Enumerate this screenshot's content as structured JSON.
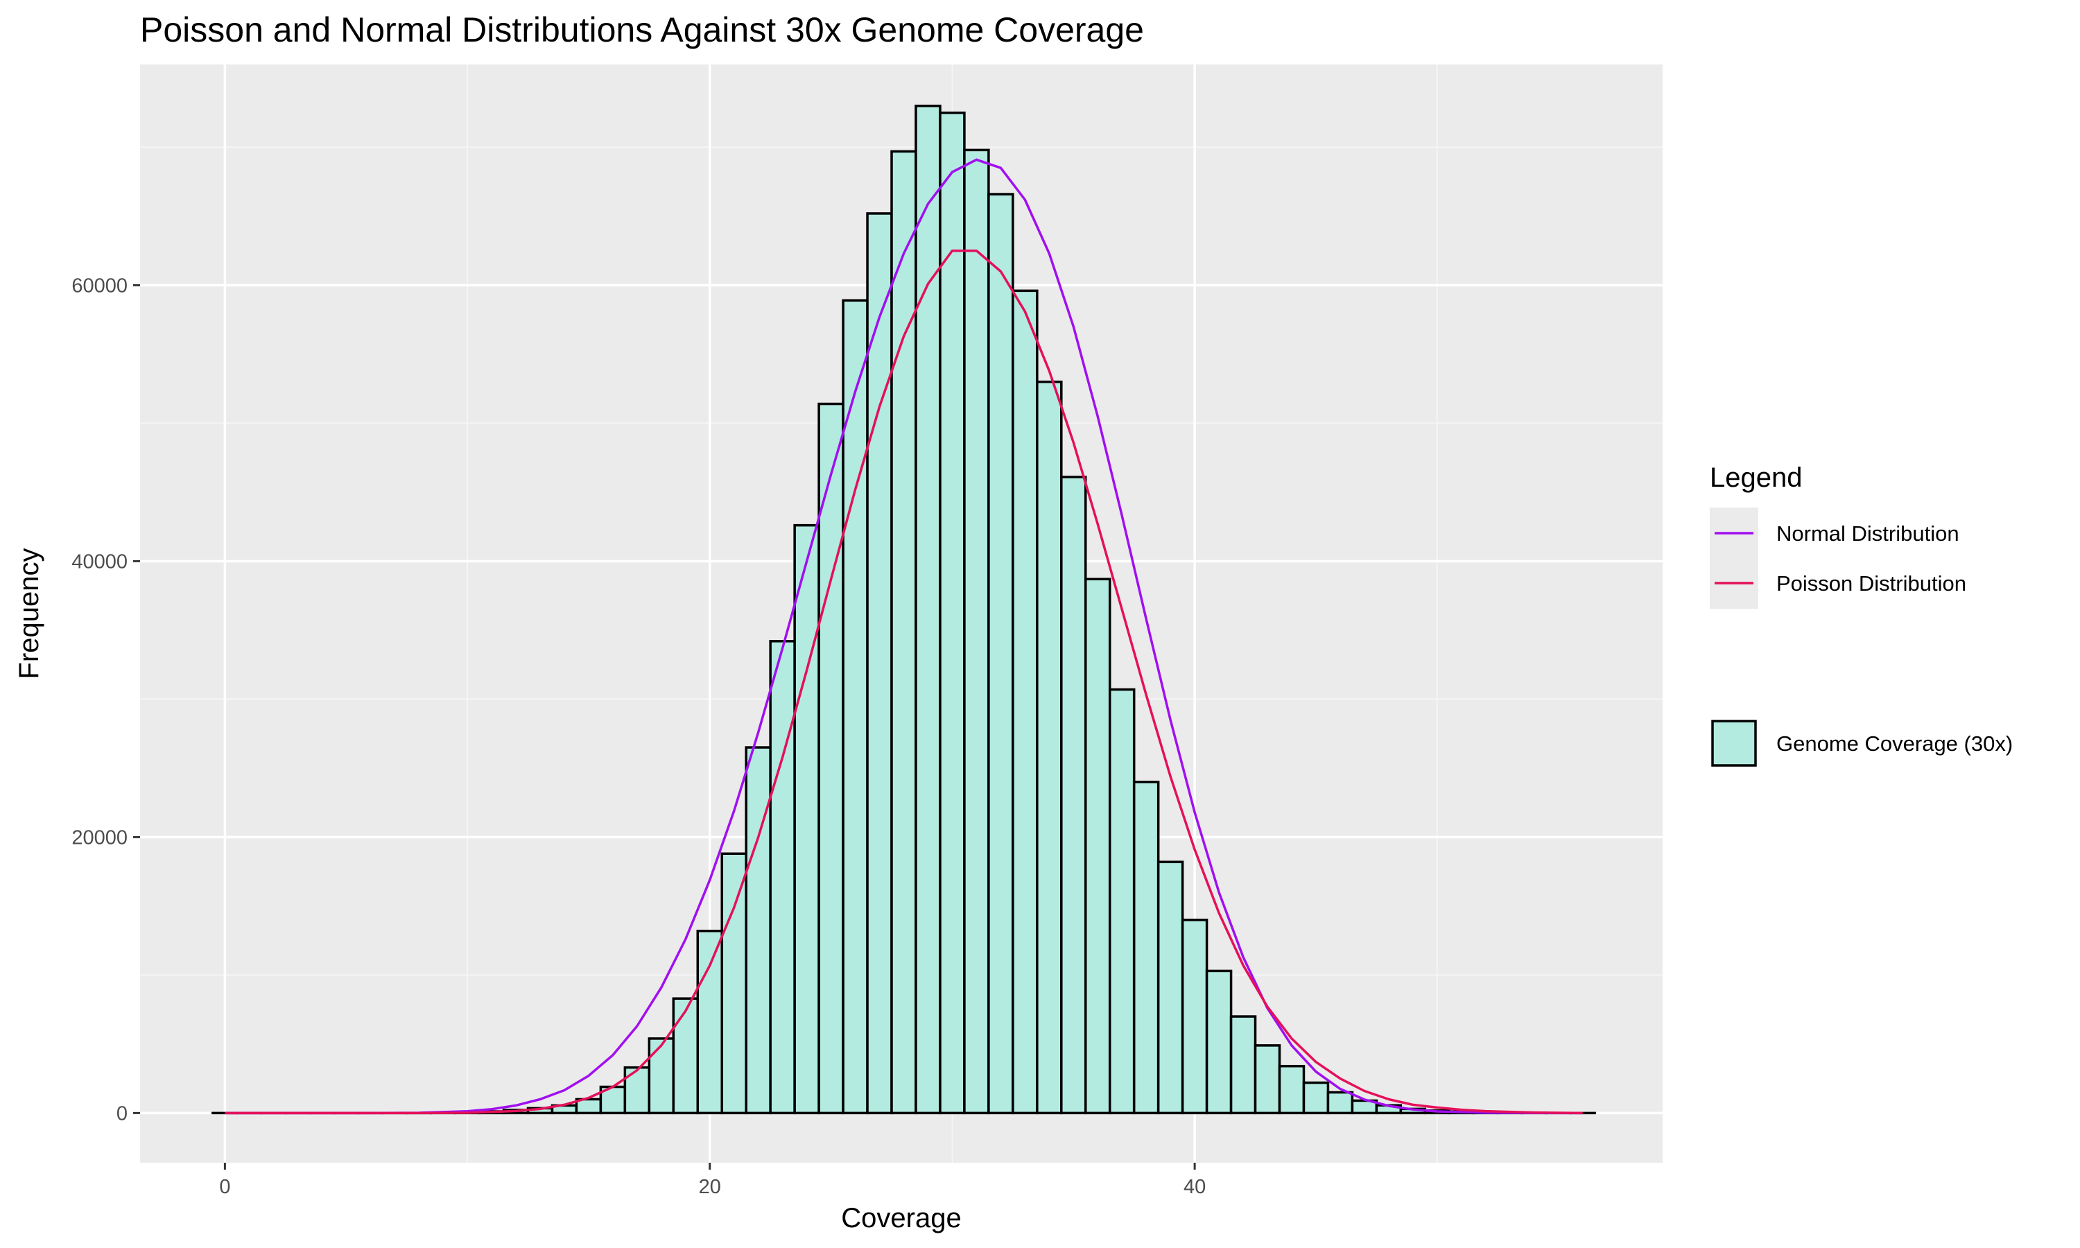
{
  "colors": {
    "panel": "#EBEBEB",
    "grid_major": "#FFFFFF",
    "grid_minor": "#F5F5F5",
    "bar_fill": "#B3EBE1",
    "bar_outline": "#000000",
    "normal": "#A10FEF",
    "poisson": "#E5105A",
    "tick": "#333333"
  },
  "chart_data": {
    "type": "bar",
    "title": "Poisson and Normal Distributions Against 30x Genome Coverage",
    "xlabel": "Coverage",
    "ylabel": "Frequency",
    "xlim": [
      -3.5,
      59.3
    ],
    "ylim": [
      -3600,
      76000
    ],
    "x_ticks": [
      0,
      20,
      40
    ],
    "x_tick_labels": [
      "0",
      "20",
      "40"
    ],
    "y_ticks": [
      0,
      20000,
      40000,
      60000
    ],
    "y_tick_labels": [
      "0",
      "20000",
      "40000",
      "60000"
    ],
    "grid": true,
    "legend_position": "right",
    "legend_title": "Legend",
    "histogram": {
      "name": "Genome Coverage (30x)",
      "x": [
        0,
        1,
        2,
        3,
        4,
        5,
        6,
        7,
        8,
        9,
        10,
        11,
        12,
        13,
        14,
        15,
        16,
        17,
        18,
        19,
        20,
        21,
        22,
        23,
        24,
        25,
        26,
        27,
        28,
        29,
        30,
        31,
        32,
        33,
        34,
        35,
        36,
        37,
        38,
        39,
        40,
        41,
        42,
        43,
        44,
        45,
        46,
        47,
        48,
        49,
        50,
        51,
        52,
        53,
        54,
        55,
        56
      ],
      "values": [
        0,
        0,
        0,
        0,
        0,
        0,
        0,
        0,
        0,
        10,
        50,
        120,
        220,
        350,
        550,
        1000,
        1900,
        3300,
        5400,
        8300,
        13200,
        18800,
        26500,
        34200,
        42600,
        51400,
        58900,
        65200,
        69700,
        73000,
        72500,
        69800,
        66600,
        59600,
        53000,
        46100,
        38700,
        30700,
        24000,
        18200,
        14000,
        10300,
        7000,
        4900,
        3400,
        2200,
        1500,
        900,
        560,
        300,
        180,
        110,
        50,
        30,
        15,
        5,
        0
      ]
    },
    "series": [
      {
        "name": "Normal Distribution",
        "x": [
          0,
          2,
          4,
          6,
          8,
          10,
          11,
          12,
          13,
          14,
          15,
          16,
          17,
          18,
          19,
          20,
          21,
          22,
          23,
          24,
          25,
          26,
          27,
          28,
          29,
          30,
          31,
          32,
          33,
          34,
          35,
          36,
          37,
          38,
          39,
          40,
          41,
          42,
          43,
          44,
          45,
          46,
          47,
          48,
          49,
          50,
          52,
          54,
          56
        ],
        "values": [
          0,
          0,
          0,
          0,
          20,
          130,
          280,
          550,
          1000,
          1650,
          2700,
          4200,
          6300,
          9100,
          12600,
          16900,
          21900,
          27600,
          33700,
          40000,
          46300,
          52300,
          57700,
          62300,
          65900,
          68200,
          69100,
          68500,
          66200,
          62300,
          57000,
          50500,
          43300,
          35800,
          28500,
          21800,
          16000,
          11300,
          7600,
          4900,
          3000,
          1750,
          980,
          520,
          260,
          120,
          25,
          5,
          0
        ]
      },
      {
        "name": "Poisson Distribution",
        "x": [
          0,
          4,
          8,
          10,
          12,
          13,
          14,
          15,
          16,
          17,
          18,
          19,
          20,
          21,
          22,
          23,
          24,
          25,
          26,
          27,
          28,
          29,
          30,
          31,
          32,
          33,
          34,
          35,
          36,
          37,
          38,
          39,
          40,
          41,
          42,
          43,
          44,
          45,
          46,
          47,
          48,
          49,
          50,
          51,
          52,
          54,
          56
        ],
        "values": [
          0,
          0,
          0,
          20,
          150,
          300,
          600,
          1100,
          1900,
          3100,
          4900,
          7400,
          10700,
          14900,
          20000,
          25800,
          32100,
          38700,
          45200,
          51200,
          56300,
          60100,
          62500,
          62500,
          61000,
          58100,
          53800,
          48600,
          42700,
          36500,
          30300,
          24400,
          19100,
          14500,
          10700,
          7700,
          5400,
          3700,
          2500,
          1600,
          1000,
          600,
          400,
          240,
          140,
          40,
          0
        ]
      }
    ]
  }
}
